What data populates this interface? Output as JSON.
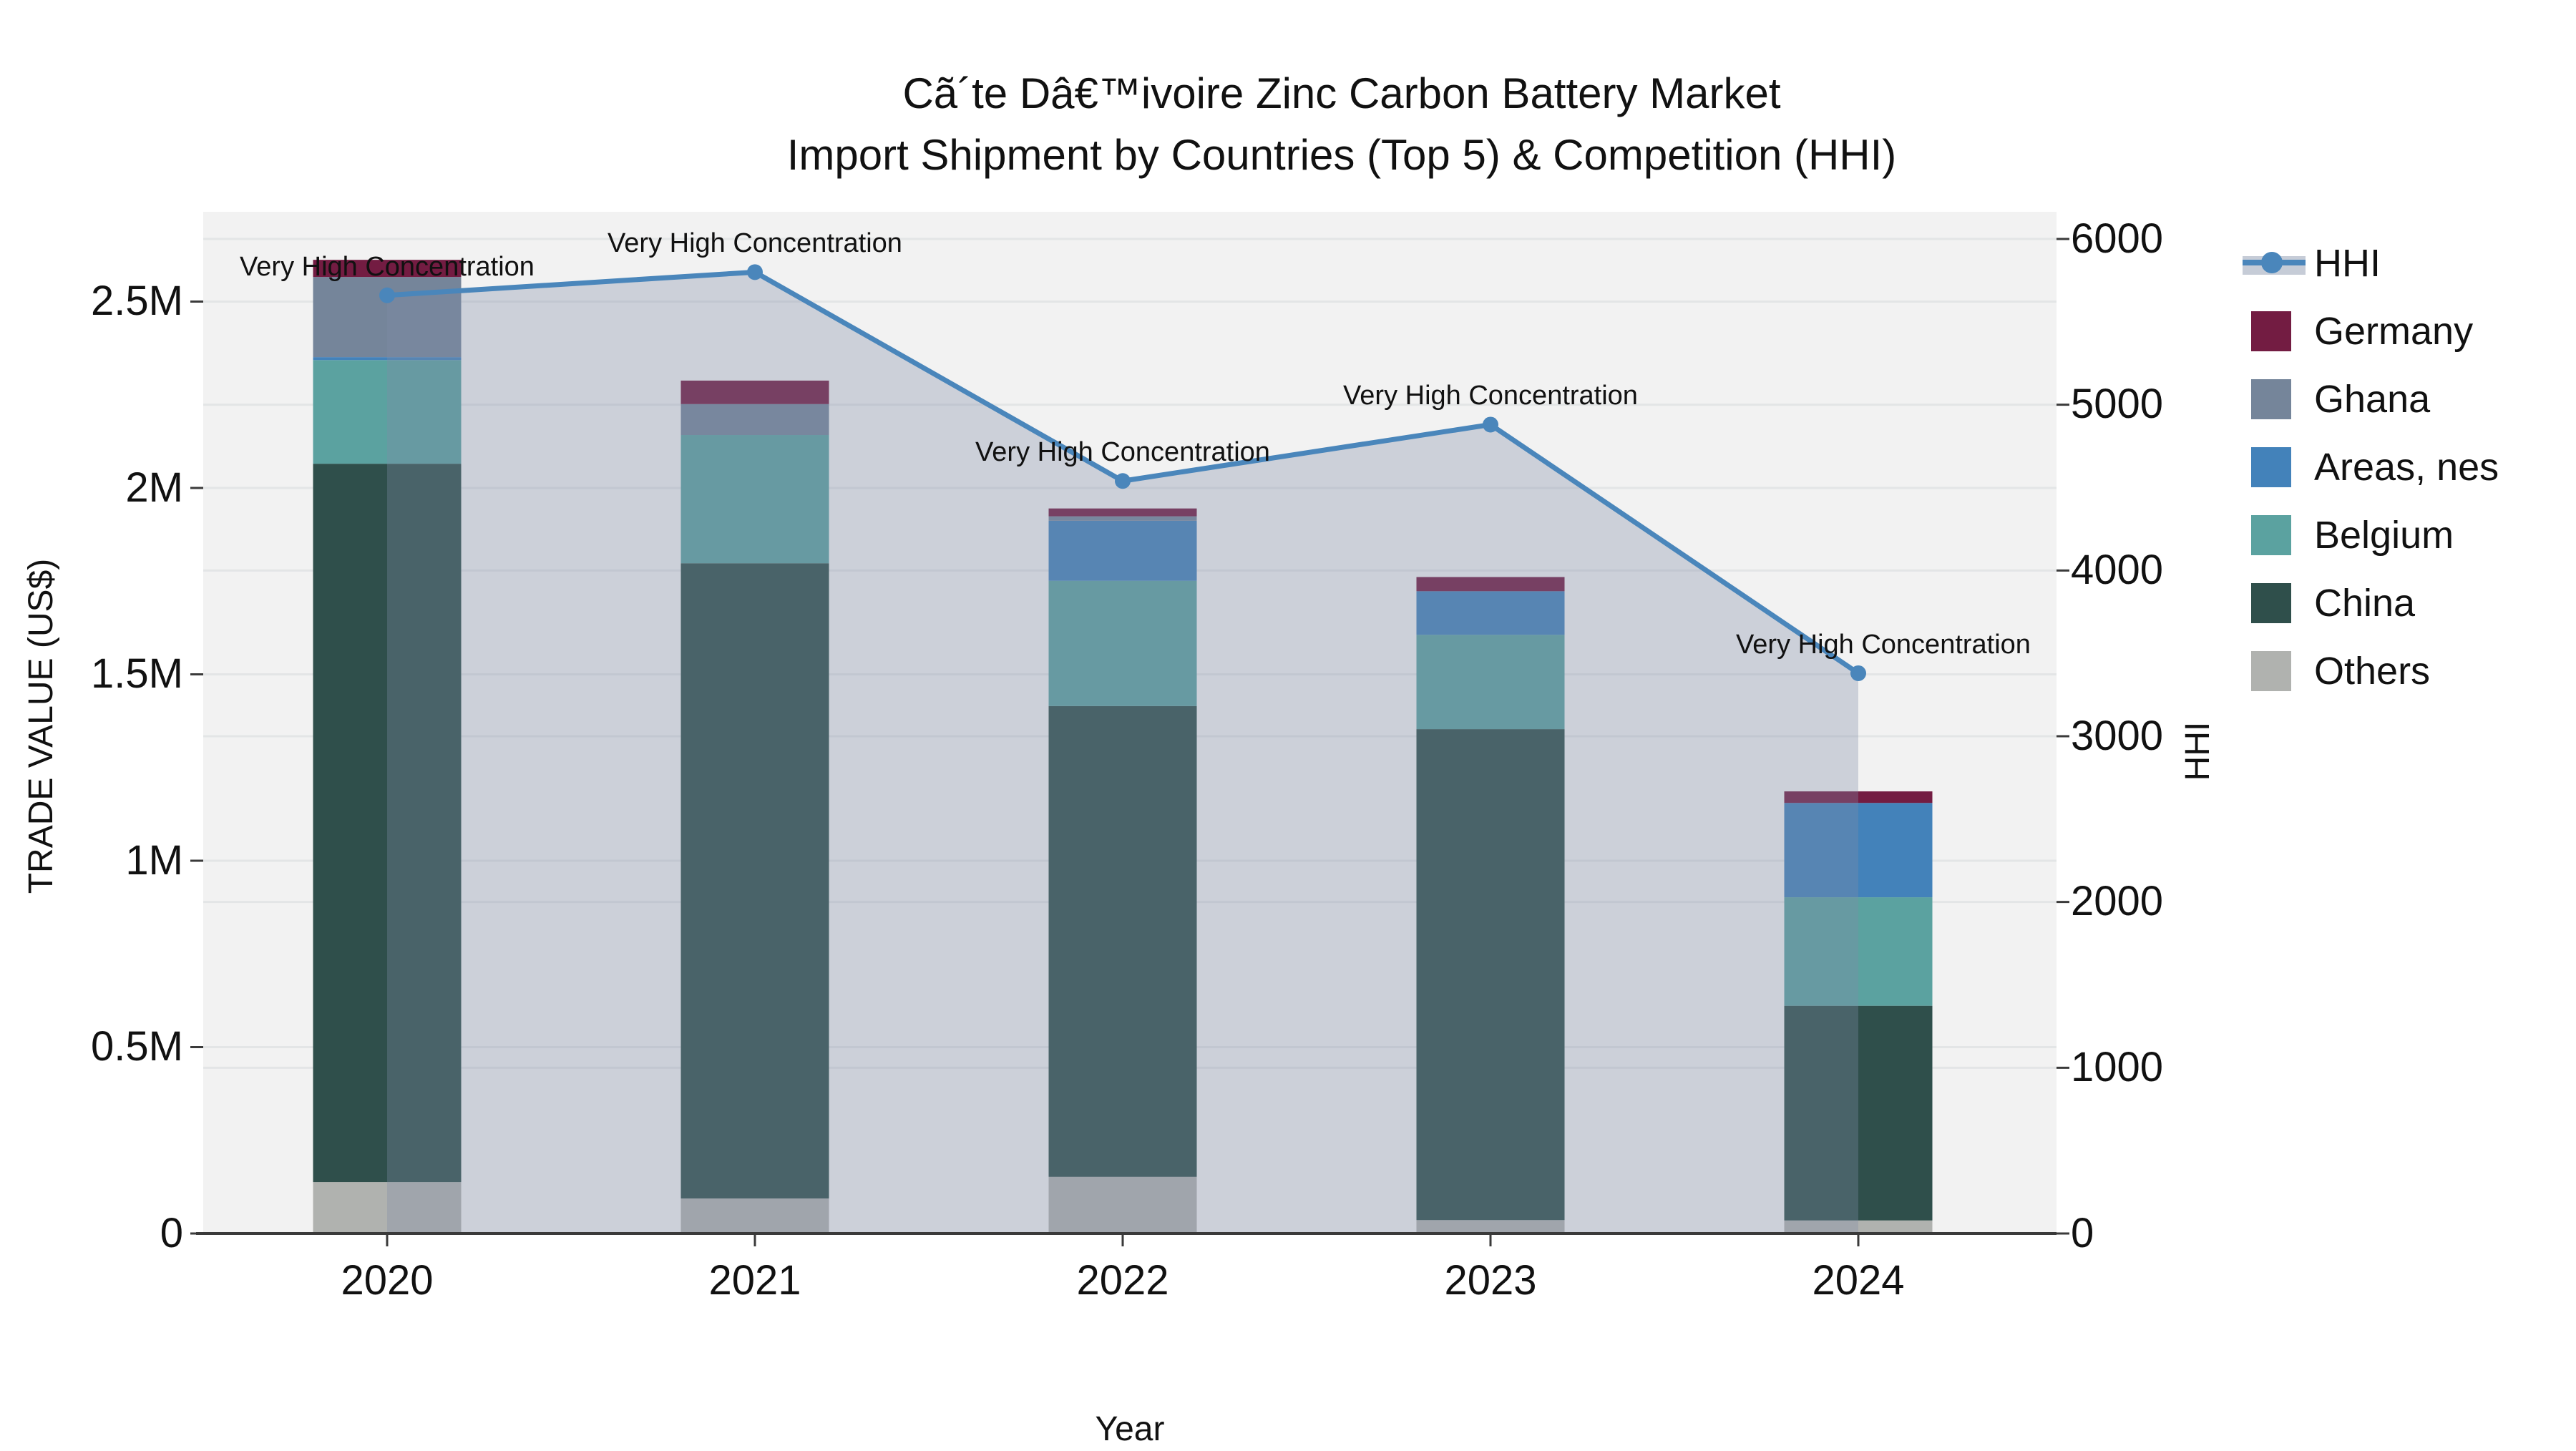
{
  "title": {
    "line1": "Cã´te Dâ€™ivoire Zinc Carbon Battery Market",
    "line2": "Import Shipment by Countries (Top 5) & Competition (HHI)"
  },
  "legend": {
    "items": [
      {
        "label": "HHI",
        "type": "line",
        "color": "#4a86bb",
        "band": "#c6ccd7"
      },
      {
        "label": "Germany",
        "type": "box",
        "color": "#731c42"
      },
      {
        "label": "Ghana",
        "type": "box",
        "color": "#75859a"
      },
      {
        "label": "Areas, nes",
        "type": "box",
        "color": "#4382ba"
      },
      {
        "label": "Belgium",
        "type": "box",
        "color": "#5ba2a0"
      },
      {
        "label": "China",
        "type": "box",
        "color": "#2f4f4b"
      },
      {
        "label": "Others",
        "type": "box",
        "color": "#b0b2af"
      }
    ]
  },
  "chart_data": {
    "type": "combo-stacked-bar-line",
    "categories": [
      "2020",
      "2021",
      "2022",
      "2023",
      "2024"
    ],
    "bar_series": [
      {
        "name": "Others",
        "color": "#b0b2af",
        "values": [
          138000,
          94000,
          152000,
          36000,
          35000
        ]
      },
      {
        "name": "China",
        "color": "#2f4f4b",
        "values": [
          1927000,
          1704000,
          1263000,
          1317000,
          576000
        ]
      },
      {
        "name": "Belgium",
        "color": "#5ba2a0",
        "values": [
          278000,
          344000,
          336000,
          253000,
          291000
        ]
      },
      {
        "name": "Areas, nes",
        "color": "#4382ba",
        "values": [
          8000,
          0,
          161000,
          117000,
          253000
        ]
      },
      {
        "name": "Ghana",
        "color": "#75859a",
        "values": [
          215000,
          83000,
          12000,
          0,
          0
        ]
      },
      {
        "name": "Germany",
        "color": "#731c42",
        "values": [
          46000,
          63000,
          21000,
          38000,
          31000
        ]
      }
    ],
    "line_series": {
      "name": "HHI",
      "color": "#4a86bb",
      "area_fill": "rgba(127,140,168,0.33)",
      "values": [
        5660,
        5800,
        4540,
        4880,
        3380
      ]
    },
    "left_axis": {
      "label": "TRADE VALUE (US$)",
      "max": 2500000,
      "ticks": [
        "2.5M",
        "2M",
        "1.5M",
        "1M",
        "0.5M",
        "0"
      ]
    },
    "right_axis": {
      "label": "HHI",
      "max": 6000,
      "ticks": [
        "6000",
        "5000",
        "4000",
        "3000",
        "2000",
        "1000",
        "0"
      ]
    },
    "x_label": "Year",
    "annotations": [
      "Very High Concentration",
      "Very High Concentration",
      "Very High Concentration",
      "Very High Concentration",
      "Very High Concentration"
    ],
    "plot_background": "#f2f2f2",
    "gridline_color": "#e3e5e6",
    "axis_line_color": "#3a3a3a"
  }
}
